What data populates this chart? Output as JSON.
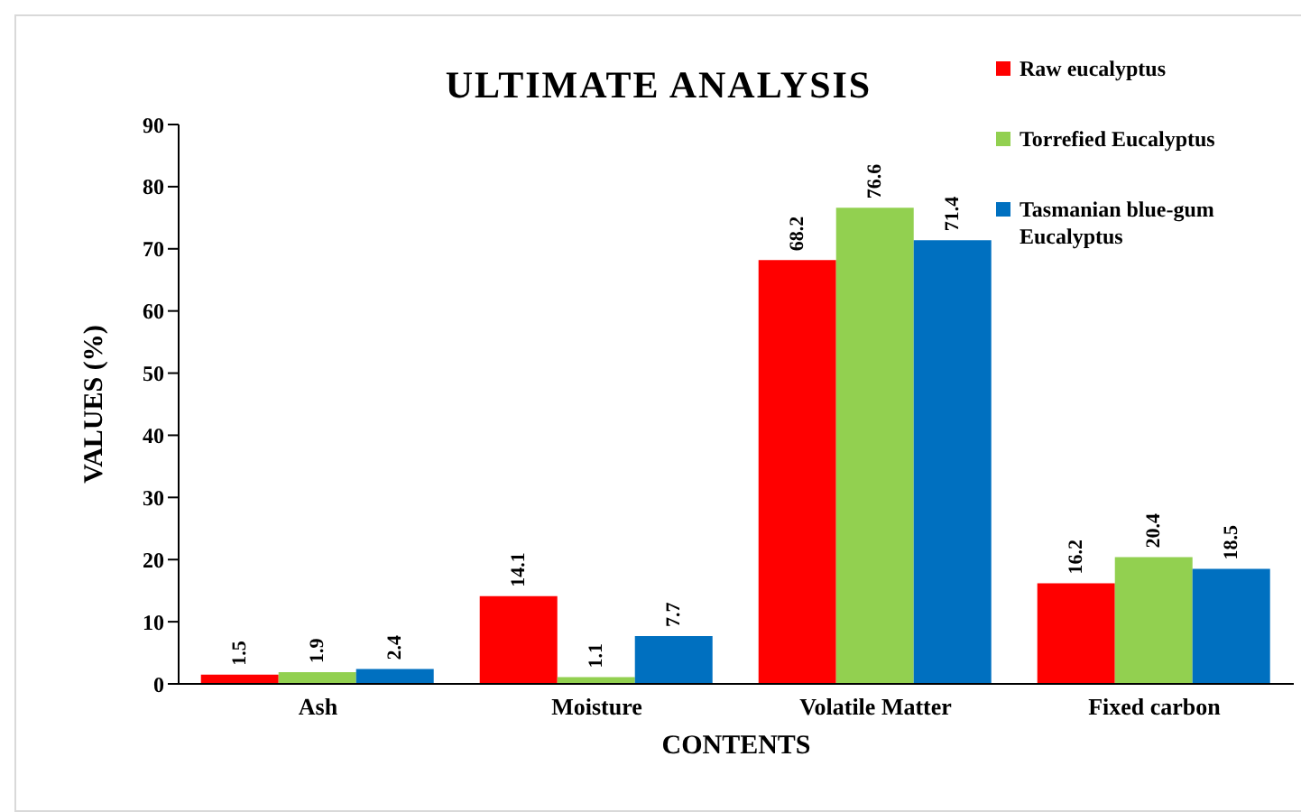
{
  "chart_data": {
    "type": "bar",
    "title": "ULTIMATE ANALYSIS",
    "xlabel": "CONTENTS",
    "ylabel": "VALUES (%)",
    "categories": [
      "Ash",
      "Moisture",
      "Volatile Matter",
      "Fixed carbon"
    ],
    "series": [
      {
        "name": "Raw eucalyptus",
        "color": "#ff0000",
        "values": [
          1.5,
          14.1,
          68.2,
          16.2
        ]
      },
      {
        "name": "Torrefied Eucalyptus",
        "color": "#92d050",
        "values": [
          1.9,
          1.1,
          76.6,
          20.4
        ]
      },
      {
        "name": "Tasmanian blue-gum Eucalyptus",
        "color": "#0070c0",
        "values": [
          2.4,
          7.7,
          71.4,
          18.5
        ]
      }
    ],
    "ylim": [
      0,
      90
    ],
    "yticks": [
      0,
      10,
      20,
      30,
      40,
      50,
      60,
      70,
      80,
      90
    ],
    "grid": false,
    "legend": "top right",
    "data_labels": true
  }
}
